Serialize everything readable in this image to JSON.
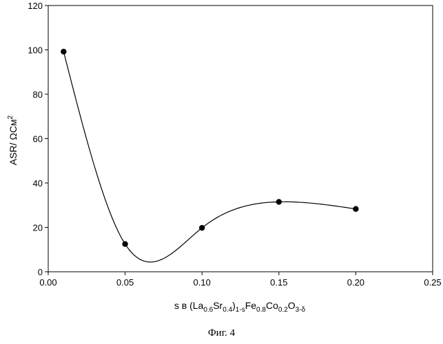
{
  "chart_data": {
    "type": "scatter",
    "title": "",
    "x": [
      0.01,
      0.05,
      0.1,
      0.15,
      0.2
    ],
    "y": [
      99.2,
      12.5,
      19.8,
      31.5,
      28.3
    ],
    "xlim": [
      0.0,
      0.25
    ],
    "ylim": [
      0,
      120
    ],
    "x_ticks": [
      "0.00",
      "0.05",
      "0.10",
      "0.15",
      "0.20",
      "0.25"
    ],
    "y_ticks": [
      "0",
      "20",
      "40",
      "60",
      "80",
      "100",
      "120"
    ],
    "xlabel": "s в (La0.6Sr0.4)1-sFe0.8Co0.2O3-δ",
    "ylabel": "ASR/ ΩCм2",
    "smooth_curve": true,
    "grid": false,
    "legend": "none"
  },
  "caption": "Фиг. 4"
}
